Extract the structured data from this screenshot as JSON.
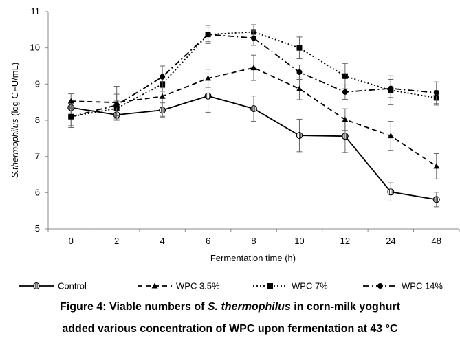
{
  "chart_data": {
    "type": "line",
    "categories": [
      "0",
      "2",
      "4",
      "6",
      "8",
      "10",
      "12",
      "24",
      "48"
    ],
    "ylabel_species": "S.thermophilus",
    "ylabel_unit": " (log CFU/mL)",
    "xlabel": "Fermentation time (h)",
    "ylim": [
      5,
      11
    ],
    "yticks": [
      5,
      6,
      7,
      8,
      9,
      10,
      11
    ],
    "grid": false,
    "legend_position": "bottom",
    "series": [
      {
        "name": "Control",
        "marker": "circle-hatched",
        "line_style": "solid",
        "color": "#000000",
        "values": [
          8.35,
          8.15,
          8.28,
          8.67,
          8.32,
          7.58,
          7.56,
          6.02,
          5.81
        ],
        "errors": [
          0.15,
          0.15,
          0.2,
          0.45,
          0.35,
          0.45,
          0.45,
          0.25,
          0.2
        ]
      },
      {
        "name": "WPC 3.5%",
        "marker": "triangle",
        "line_style": "dashed",
        "color": "#000000",
        "values": [
          8.53,
          8.49,
          8.66,
          9.16,
          9.45,
          8.87,
          8.02,
          7.57,
          6.73
        ],
        "errors": [
          0.2,
          0.45,
          0.55,
          0.25,
          0.35,
          0.3,
          0.3,
          0.4,
          0.35
        ]
      },
      {
        "name": "WPC 7%",
        "marker": "square",
        "line_style": "dotted",
        "color": "#000000",
        "values": [
          8.1,
          8.33,
          9.0,
          10.37,
          10.44,
          10.0,
          9.22,
          8.83,
          8.62
        ],
        "errors": [
          0.3,
          0.2,
          0.2,
          0.25,
          0.2,
          0.3,
          0.35,
          0.4,
          0.2
        ]
      },
      {
        "name": "WPC 14%",
        "marker": "circle",
        "line_style": "dashdot",
        "color": "#000000",
        "values": [
          8.1,
          8.42,
          9.2,
          10.37,
          10.27,
          9.33,
          8.78,
          8.88,
          8.76
        ],
        "errors": [
          0.25,
          0.3,
          0.3,
          0.2,
          0.2,
          0.2,
          0.2,
          0.25,
          0.3
        ]
      }
    ]
  },
  "caption": {
    "line1_prefix": "Figure 4: Viable numbers of ",
    "line1_species": "S. thermophilus",
    "line1_suffix": " in corn-milk yoghurt",
    "line2": "added various concentration of WPC upon fermentation at 43 °C"
  }
}
